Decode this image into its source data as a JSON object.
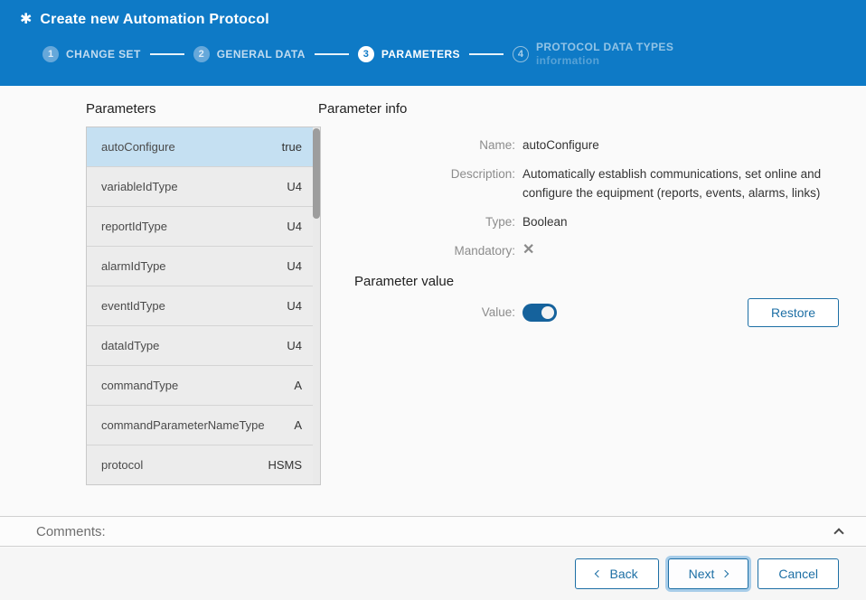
{
  "colors": {
    "header_blue": "#0e7ac6",
    "accent_blue": "#1d6fa5",
    "selected_row_blue": "#c5e0f2",
    "toggle_on_blue": "#15629c"
  },
  "header": {
    "icon": "✱",
    "title": "Create new Automation Protocol",
    "steps": [
      {
        "number": "1",
        "label": "CHANGE SET",
        "state": "done"
      },
      {
        "number": "2",
        "label": "GENERAL DATA",
        "state": "done"
      },
      {
        "number": "3",
        "label": "PARAMETERS",
        "state": "active"
      },
      {
        "number": "4",
        "label": "PROTOCOL DATA TYPES",
        "sublabel": "information",
        "state": "upcoming"
      }
    ]
  },
  "parameters_panel": {
    "title": "Parameters",
    "items": [
      {
        "name": "autoConfigure",
        "value": "true",
        "selected": true
      },
      {
        "name": "variableIdType",
        "value": "U4",
        "selected": false
      },
      {
        "name": "reportIdType",
        "value": "U4",
        "selected": false
      },
      {
        "name": "alarmIdType",
        "value": "U4",
        "selected": false
      },
      {
        "name": "eventIdType",
        "value": "U4",
        "selected": false
      },
      {
        "name": "dataIdType",
        "value": "U4",
        "selected": false
      },
      {
        "name": "commandType",
        "value": "A",
        "selected": false
      },
      {
        "name": "commandParameterNameType",
        "value": "A",
        "selected": false
      },
      {
        "name": "protocol",
        "value": "HSMS",
        "selected": false
      }
    ]
  },
  "info_panel": {
    "title": "Parameter info",
    "fields": [
      {
        "label": "Name:",
        "value": "autoConfigure",
        "type": "text"
      },
      {
        "label": "Description:",
        "value": "Automatically establish communications, set online and configure the equipment (reports, events, alarms, links)",
        "type": "text"
      },
      {
        "label": "Type:",
        "value": "Boolean",
        "type": "text"
      },
      {
        "label": "Mandatory:",
        "value": "✕",
        "type": "icon"
      }
    ],
    "value_section": {
      "title": "Parameter value",
      "value_label": "Value:",
      "toggle_state": "on",
      "restore_button": "Restore"
    }
  },
  "footer": {
    "comments_label": "Comments:",
    "back_button": "Back",
    "next_button": "Next",
    "cancel_button": "Cancel"
  }
}
